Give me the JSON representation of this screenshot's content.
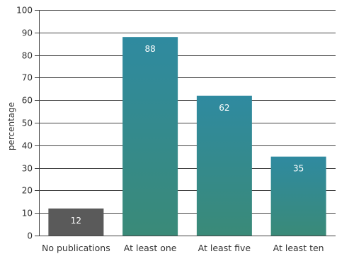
{
  "chart_data": {
    "type": "bar",
    "title": "",
    "xlabel": "",
    "ylabel": "percentage",
    "ylim": [
      0,
      100
    ],
    "yticks": [
      0,
      10,
      20,
      30,
      40,
      50,
      60,
      70,
      80,
      90,
      100
    ],
    "grid": true,
    "legend": "none",
    "categories": [
      "No publications",
      "At least one",
      "At least five",
      "At least ten"
    ],
    "values": [
      12,
      88,
      62,
      35
    ],
    "data_labels": [
      "12",
      "88",
      "62",
      "35"
    ],
    "colors": [
      "#5a5a5a",
      "#2f8a9e",
      "#2f8a9e",
      "#2f8a9e"
    ],
    "gradient_bottom": "#3a8a7a"
  }
}
